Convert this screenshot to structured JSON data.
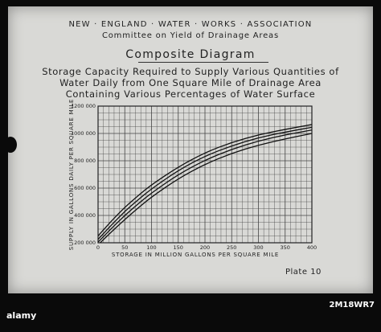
{
  "header": {
    "organization": "NEW · ENGLAND · WATER · WORKS · ASSOCIATION",
    "committee": "Committee on Yield of Drainage Areas",
    "title": "Composite Diagram",
    "description_line1": "Storage Capacity Required to Supply Various Quantities of",
    "description_line2": "Water Daily from One Square Mile of Drainage Area",
    "description_line3": "Containing Various Percentages of Water Surface"
  },
  "plate": "Plate 10",
  "watermark": {
    "logo": "alamy",
    "code": "2M18WR7"
  },
  "chart_data": {
    "type": "line",
    "xlabel": "STORAGE IN MILLION GALLONS PER SQUARE MILE",
    "ylabel": "SUPPLY IN GALLONS DAILY PER SQUARE MILE",
    "xlim": [
      0,
      400
    ],
    "ylim": [
      200000,
      1200000
    ],
    "grid": true,
    "x_ticks": [
      0,
      50,
      100,
      150,
      200,
      250,
      300,
      350,
      400
    ],
    "x_tick_labels": [
      "0",
      "50",
      "100",
      "150",
      "200",
      "250",
      "300",
      "350",
      "400"
    ],
    "y_ticks": [
      200000,
      400000,
      600000,
      800000,
      1000000,
      1200000
    ],
    "y_tick_labels": [
      "200 000",
      "400 000",
      "600 000",
      "800 000",
      "1000 000",
      "1200 000"
    ],
    "x": [
      0,
      25,
      50,
      75,
      100,
      150,
      200,
      250,
      300,
      350,
      400
    ],
    "series": [
      {
        "values": [
          250000,
          360000,
          460000,
          545000,
          625000,
          755000,
          860000,
          935000,
          990000,
          1030000,
          1065000
        ]
      },
      {
        "values": [
          225000,
          330000,
          430000,
          515000,
          595000,
          730000,
          835000,
          910000,
          970000,
          1010000,
          1045000
        ]
      },
      {
        "values": [
          205000,
          305000,
          400000,
          485000,
          565000,
          700000,
          805000,
          885000,
          945000,
          990000,
          1025000
        ]
      },
      {
        "values": [
          185000,
          280000,
          370000,
          455000,
          535000,
          670000,
          775000,
          855000,
          915000,
          960000,
          1000000
        ]
      }
    ]
  }
}
